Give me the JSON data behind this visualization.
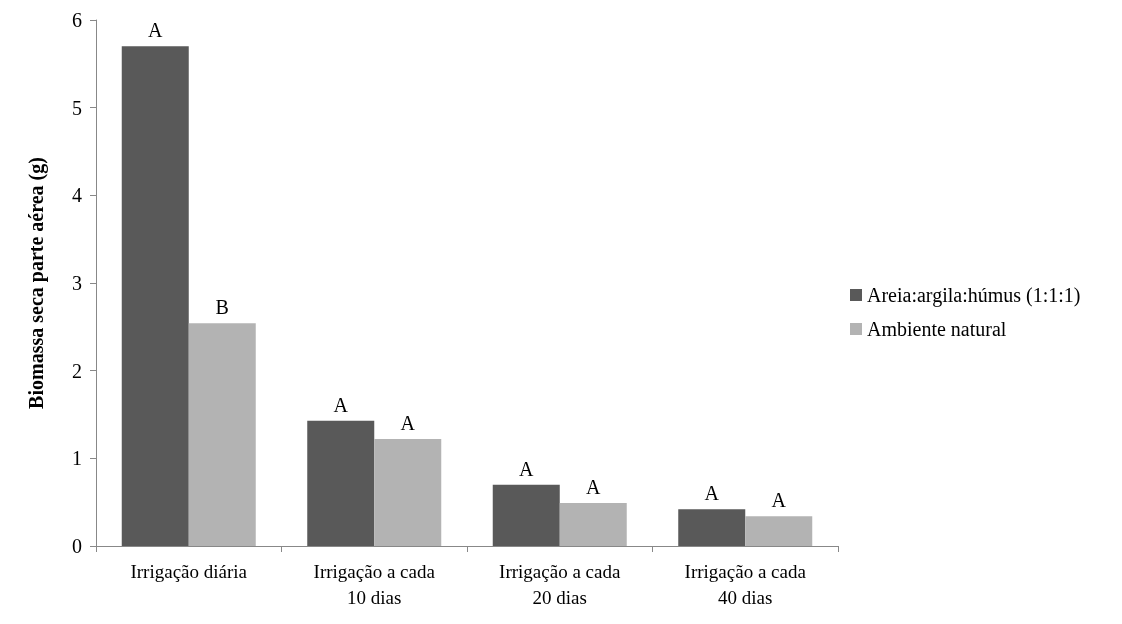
{
  "chart_data": {
    "type": "bar",
    "ylabel": "Biomassa seca parte aérea (g)",
    "categories": [
      "Irrigação diária",
      "Irrigação a cada\n10 dias",
      "Irrigação a cada\n20 dias",
      "Irrigação a cada\n40 dias"
    ],
    "series": [
      {
        "name": "Areia:argila:húmus (1:1:1)",
        "color": "#595959",
        "values": [
          5.7,
          1.43,
          0.7,
          0.42
        ],
        "value_labels": [
          "A",
          "A",
          "A",
          "A"
        ]
      },
      {
        "name": "Ambiente natural",
        "color": "#b3b3b3",
        "values": [
          2.54,
          1.22,
          0.49,
          0.34
        ],
        "value_labels": [
          "B",
          "A",
          "A",
          "A"
        ]
      }
    ],
    "ylim": [
      0,
      6
    ],
    "yticks": [
      0,
      1,
      2,
      3,
      4,
      5,
      6
    ],
    "grid": false,
    "legend": "right"
  }
}
